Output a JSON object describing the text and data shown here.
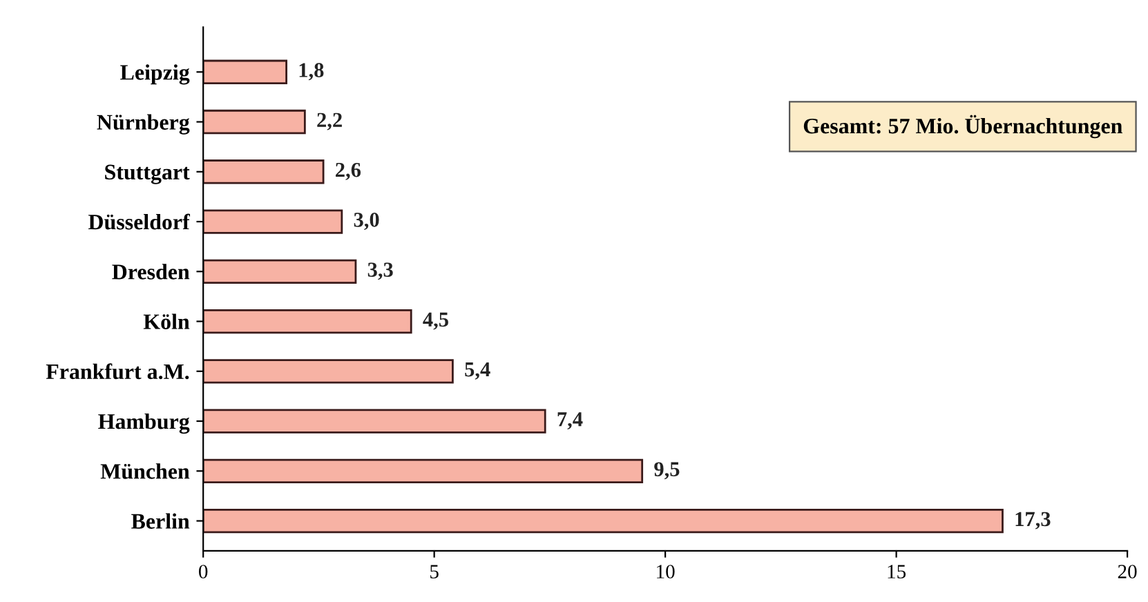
{
  "chart_data": {
    "type": "bar",
    "orientation": "horizontal",
    "categories": [
      "Leipzig",
      "Nürnberg",
      "Stuttgart",
      "Düsseldorf",
      "Dresden",
      "Köln",
      "Frankfurt a.M.",
      "Hamburg",
      "München",
      "Berlin"
    ],
    "values": [
      1.8,
      2.2,
      2.6,
      3.0,
      3.3,
      4.5,
      5.4,
      7.4,
      9.5,
      17.3
    ],
    "value_labels": [
      "1,8",
      "2,2",
      "2,6",
      "3,0",
      "3,3",
      "4,5",
      "5,4",
      "7,4",
      "9,5",
      "17,3"
    ],
    "color": "#f7b2a4",
    "xlim": [
      0,
      20
    ],
    "xticks": [
      0,
      5,
      10,
      15,
      20
    ],
    "grid": false,
    "annotations": [
      "Gesamt: 57 Mio. Übernachtungen"
    ]
  }
}
